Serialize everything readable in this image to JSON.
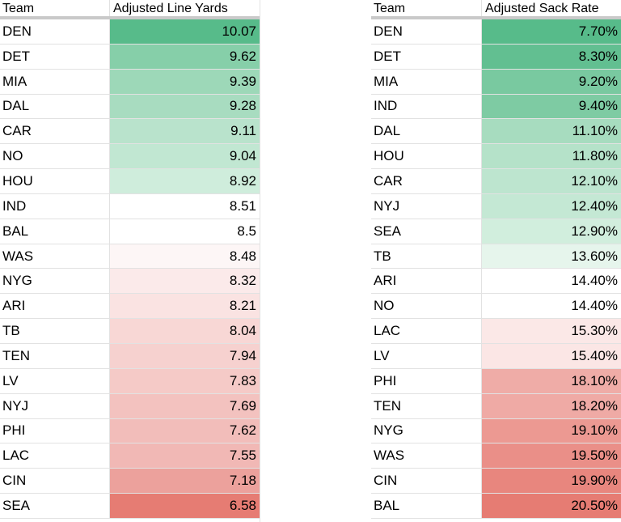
{
  "left_table": {
    "headers": {
      "team": "Team",
      "value": "Adjusted Line Yards"
    },
    "rows": [
      {
        "team": "DEN",
        "value": "10.07",
        "color": "#57bb8a"
      },
      {
        "team": "DET",
        "value": "9.62",
        "color": "#86cfa9"
      },
      {
        "team": "MIA",
        "value": "9.39",
        "color": "#9dd8b8"
      },
      {
        "team": "DAL",
        "value": "9.28",
        "color": "#a8dcc0"
      },
      {
        "team": "CAR",
        "value": "9.11",
        "color": "#b9e3cc"
      },
      {
        "team": "NO",
        "value": "9.04",
        "color": "#c1e7d2"
      },
      {
        "team": "HOU",
        "value": "8.92",
        "color": "#cfeddc"
      },
      {
        "team": "IND",
        "value": "8.51",
        "color": "#ffffff"
      },
      {
        "team": "BAL",
        "value": "8.5",
        "color": "#ffffff"
      },
      {
        "team": "WAS",
        "value": "8.48",
        "color": "#fdf6f6"
      },
      {
        "team": "NYG",
        "value": "8.32",
        "color": "#fbeaea"
      },
      {
        "team": "ARI",
        "value": "8.21",
        "color": "#fae3e2"
      },
      {
        "team": "TB",
        "value": "8.04",
        "color": "#f8d7d5"
      },
      {
        "team": "TEN",
        "value": "7.94",
        "color": "#f6d1cf"
      },
      {
        "team": "LV",
        "value": "7.83",
        "color": "#f5cac7"
      },
      {
        "team": "NYJ",
        "value": "7.69",
        "color": "#f3c2bf"
      },
      {
        "team": "PHI",
        "value": "7.62",
        "color": "#f2bdba"
      },
      {
        "team": "LAC",
        "value": "7.55",
        "color": "#f1b8b5"
      },
      {
        "team": "CIN",
        "value": "7.18",
        "color": "#eca19c"
      },
      {
        "team": "SEA",
        "value": "6.58",
        "color": "#e67c73"
      }
    ]
  },
  "right_table": {
    "headers": {
      "team": "Team",
      "value": "Adjusted Sack Rate"
    },
    "rows": [
      {
        "team": "DEN",
        "value": "7.70%",
        "color": "#57bb8a"
      },
      {
        "team": "DET",
        "value": "8.30%",
        "color": "#62bf91"
      },
      {
        "team": "MIA",
        "value": "9.20%",
        "color": "#79c9a0"
      },
      {
        "team": "IND",
        "value": "9.40%",
        "color": "#7ecba3"
      },
      {
        "team": "DAL",
        "value": "11.10%",
        "color": "#a7dcbf"
      },
      {
        "team": "HOU",
        "value": "11.80%",
        "color": "#b5e2c9"
      },
      {
        "team": "CAR",
        "value": "12.10%",
        "color": "#bde5cf"
      },
      {
        "team": "NYJ",
        "value": "12.40%",
        "color": "#c4e8d4"
      },
      {
        "team": "SEA",
        "value": "12.90%",
        "color": "#d1eedd"
      },
      {
        "team": "TB",
        "value": "13.60%",
        "color": "#e6f5ec"
      },
      {
        "team": "ARI",
        "value": "14.40%",
        "color": "#ffffff"
      },
      {
        "team": "NO",
        "value": "14.40%",
        "color": "#ffffff"
      },
      {
        "team": "LAC",
        "value": "15.30%",
        "color": "#fbe8e7"
      },
      {
        "team": "LV",
        "value": "15.40%",
        "color": "#fbe6e5"
      },
      {
        "team": "PHI",
        "value": "18.10%",
        "color": "#efaca7"
      },
      {
        "team": "TEN",
        "value": "18.20%",
        "color": "#efaaa5"
      },
      {
        "team": "NYG",
        "value": "19.10%",
        "color": "#ec9992"
      },
      {
        "team": "WAS",
        "value": "19.50%",
        "color": "#ea8f88"
      },
      {
        "team": "CIN",
        "value": "19.90%",
        "color": "#e8867e"
      },
      {
        "team": "BAL",
        "value": "20.50%",
        "color": "#e67c73"
      }
    ]
  }
}
